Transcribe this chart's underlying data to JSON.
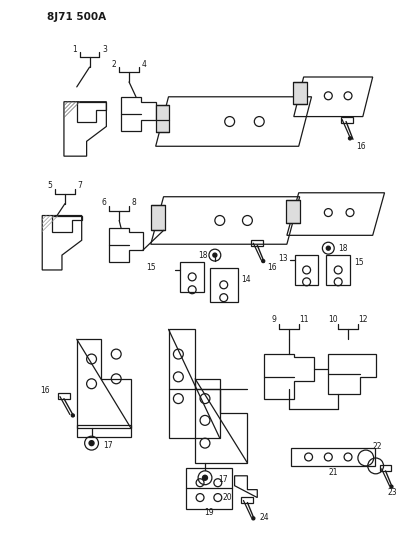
{
  "title": "8J71 500A",
  "bg_color": "#ffffff",
  "fig_width": 4.1,
  "fig_height": 5.33,
  "dpi": 100
}
